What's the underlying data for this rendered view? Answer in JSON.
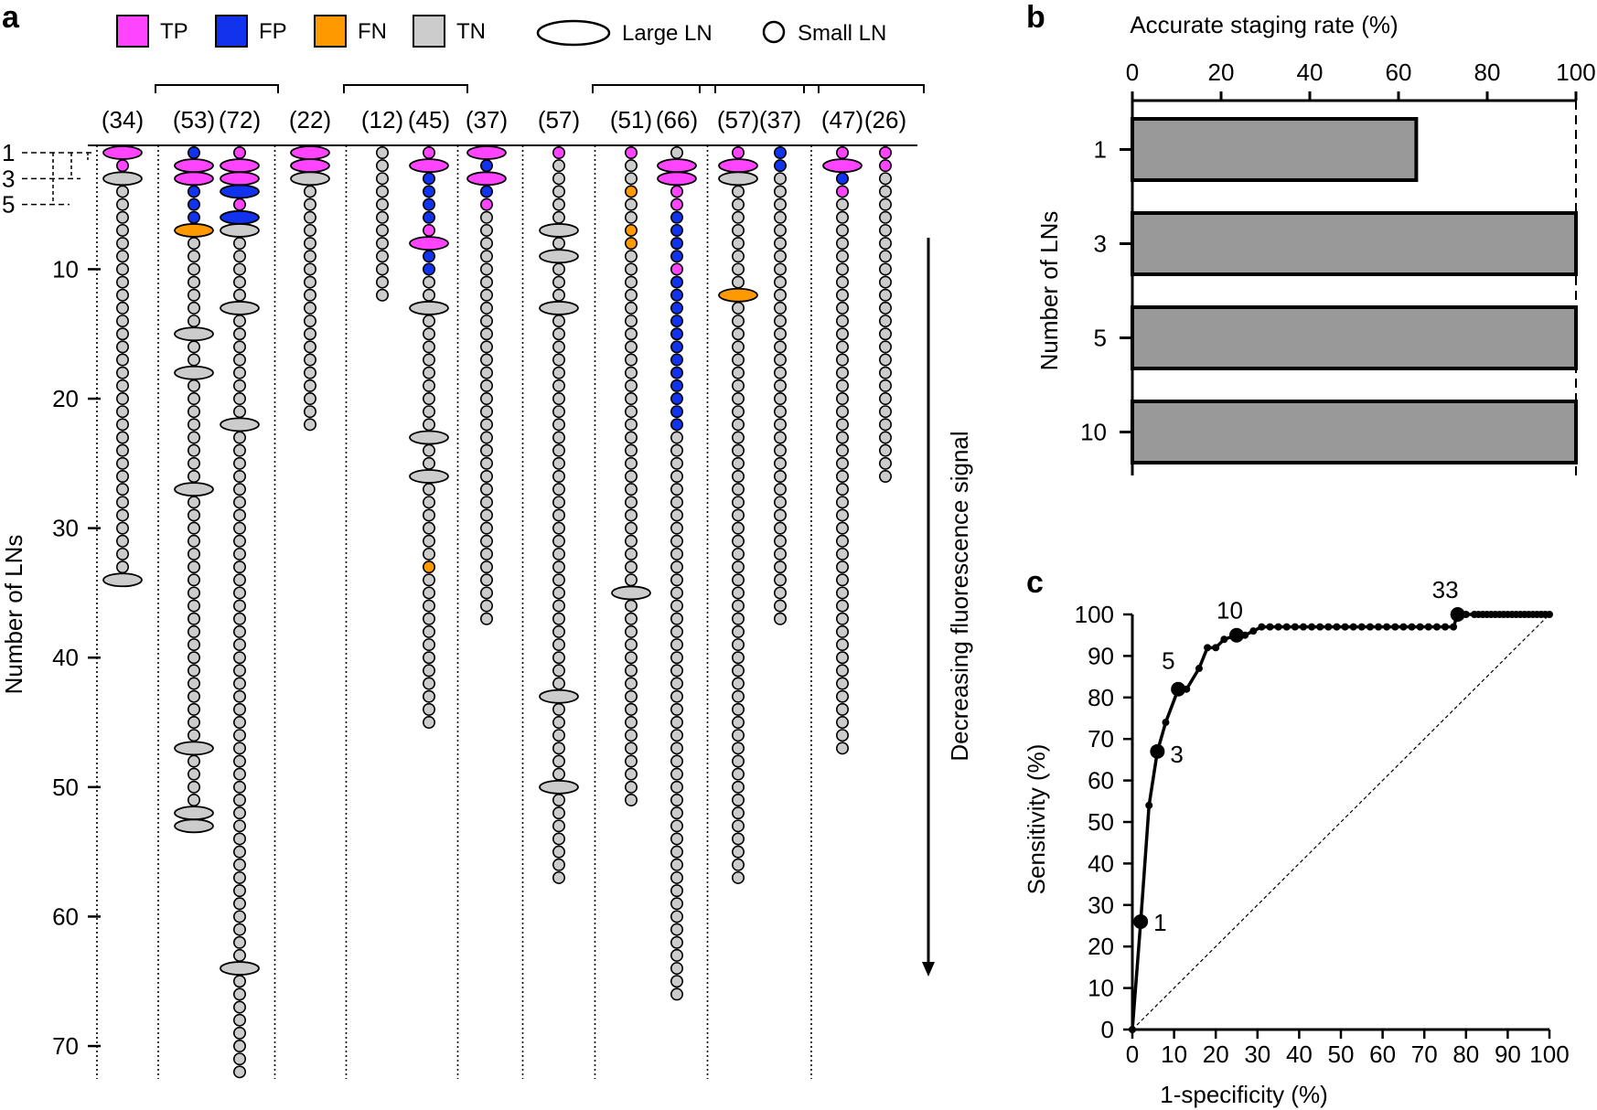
{
  "panel_labels": {
    "a": "a",
    "b": "b",
    "c": "c"
  },
  "chart_data": [
    {
      "type": "other",
      "panel": "a",
      "ylabel": "Number of LNs",
      "yticks": [
        10,
        20,
        30,
        40,
        50,
        60,
        70
      ],
      "left_markers": [
        "1",
        "3",
        "5"
      ],
      "arrow_label": "Decreasing fluorescence signal",
      "legend": [
        {
          "label": "TP",
          "color": "#ff44ff"
        },
        {
          "label": "FP",
          "color": "#1133ee"
        },
        {
          "label": "FN",
          "color": "#ff9900"
        },
        {
          "label": "TN",
          "color": "#cccccc"
        },
        {
          "label": "Large LN",
          "shape": "ellipse"
        },
        {
          "label": "Small LN",
          "shape": "circle"
        }
      ],
      "groups": [
        {
          "patients": [
            0
          ]
        },
        {
          "patients": [
            1,
            2
          ]
        },
        {
          "patients": [
            3
          ]
        },
        {
          "patients": [
            4,
            5
          ]
        },
        {
          "patients": [
            6
          ]
        },
        {
          "patients": [
            7
          ]
        },
        {
          "patients": [
            8,
            9
          ]
        },
        {
          "patients": [
            10,
            11
          ]
        },
        {
          "patients": [
            12,
            13
          ]
        }
      ],
      "patients": [
        {
          "label": "(34)",
          "count": 34,
          "large": [
            1,
            3,
            34
          ],
          "classes": {
            "TP": [
              1,
              2
            ],
            "FN": [],
            "FP": []
          }
        },
        {
          "label": "(53)",
          "count": 53,
          "large": [
            2,
            3,
            7,
            15,
            18,
            27,
            47,
            52,
            53
          ],
          "classes": {
            "TP": [
              2,
              3
            ],
            "FN": [
              7
            ],
            "FP": [
              1,
              4,
              5,
              6
            ]
          }
        },
        {
          "label": "(72)",
          "count": 72,
          "large": [
            2,
            3,
            4,
            6,
            7,
            13,
            22,
            64
          ],
          "classes": {
            "TP": [
              1,
              2,
              3,
              5
            ],
            "FN": [],
            "FP": [
              4,
              6
            ]
          }
        },
        {
          "label": "(22)",
          "count": 22,
          "large": [
            1,
            2,
            3
          ],
          "classes": {
            "TP": [
              1,
              2
            ],
            "FN": [],
            "FP": []
          }
        },
        {
          "label": "(12)",
          "count": 12,
          "large": [],
          "classes": {
            "TP": [],
            "FN": [],
            "FP": []
          }
        },
        {
          "label": "(45)",
          "count": 45,
          "large": [
            2,
            8,
            13,
            23,
            26
          ],
          "classes": {
            "TP": [
              1,
              2,
              7,
              8
            ],
            "FN": [
              33
            ],
            "FP": [
              3,
              4,
              5,
              6,
              9,
              10
            ]
          }
        },
        {
          "label": "(37)",
          "count": 37,
          "large": [
            1,
            3
          ],
          "classes": {
            "TP": [
              1,
              3,
              5
            ],
            "FN": [],
            "FP": [
              2,
              4
            ]
          }
        },
        {
          "label": "(57)",
          "count": 57,
          "large": [
            7,
            9,
            13,
            43,
            50
          ],
          "classes": {
            "TP": [
              1
            ],
            "FN": [],
            "FP": []
          }
        },
        {
          "label": "(51)",
          "count": 51,
          "large": [
            35
          ],
          "classes": {
            "TP": [
              1
            ],
            "FN": [
              4,
              7,
              8
            ],
            "FP": []
          }
        },
        {
          "label": "(66)",
          "count": 66,
          "large": [
            2,
            3
          ],
          "classes": {
            "TP": [
              2,
              3,
              4,
              5,
              10
            ],
            "FN": [],
            "FP": [
              6,
              7,
              8,
              9,
              11,
              12,
              13,
              14,
              15,
              16,
              17,
              18,
              19,
              20,
              21,
              22
            ]
          }
        },
        {
          "label": "(57)",
          "count": 57,
          "large": [
            2,
            3,
            12
          ],
          "classes": {
            "TP": [
              1,
              2
            ],
            "FN": [
              12
            ],
            "FP": []
          }
        },
        {
          "label": "(37)",
          "count": 37,
          "large": [],
          "classes": {
            "TP": [],
            "FN": [],
            "FP": [
              1,
              2
            ]
          }
        },
        {
          "label": "(47)",
          "count": 47,
          "large": [
            2
          ],
          "classes": {
            "TP": [
              1,
              2,
              4
            ],
            "FN": [],
            "FP": [
              3
            ]
          }
        },
        {
          "label": "(26)",
          "count": 26,
          "large": [],
          "classes": {
            "TP": [
              1,
              2
            ],
            "FN": [],
            "FP": []
          }
        }
      ]
    },
    {
      "type": "bar",
      "panel": "b",
      "orientation": "horizontal",
      "title": "Accurate staging rate (%)",
      "ylabel": "Number of LNs",
      "categories": [
        "1",
        "3",
        "5",
        "10"
      ],
      "values": [
        64,
        100,
        100,
        100
      ],
      "xlim": [
        0,
        100
      ],
      "xticks": [
        0,
        20,
        40,
        60,
        80,
        100
      ],
      "bar_color": "#999999"
    },
    {
      "type": "line",
      "panel": "c",
      "xlabel": "1-specificity (%)",
      "ylabel": "Sensitivity (%)",
      "xlim": [
        0,
        100
      ],
      "ylim": [
        0,
        100
      ],
      "xticks": [
        0,
        10,
        20,
        30,
        40,
        50,
        60,
        70,
        80,
        90,
        100
      ],
      "yticks": [
        0,
        10,
        20,
        30,
        40,
        50,
        60,
        70,
        80,
        90,
        100
      ],
      "x": [
        0,
        2,
        4,
        6,
        8,
        11,
        13,
        16,
        18,
        20,
        22,
        25,
        27,
        29,
        31,
        33,
        35,
        37,
        39,
        41,
        43,
        45,
        47,
        49,
        51,
        53,
        55,
        57,
        59,
        61,
        63,
        65,
        67,
        69,
        71,
        73,
        75,
        77,
        78,
        80,
        82,
        83,
        84,
        85,
        86,
        87,
        88,
        89,
        90,
        91,
        92,
        93,
        94,
        95,
        96,
        97,
        98,
        99,
        100
      ],
      "y": [
        0,
        26,
        54,
        67,
        74,
        82,
        82,
        87,
        92,
        92,
        94,
        95,
        95,
        96,
        97,
        97,
        97,
        97,
        97,
        97,
        97,
        97,
        97,
        97,
        97,
        97,
        97,
        97,
        97,
        97,
        97,
        97,
        97,
        97,
        97,
        97,
        97,
        97,
        100,
        100,
        100,
        100,
        100,
        100,
        100,
        100,
        100,
        100,
        100,
        100,
        100,
        100,
        100,
        100,
        100,
        100,
        100,
        100,
        100
      ],
      "highlighted": [
        {
          "label": "1",
          "x": 2,
          "y": 26
        },
        {
          "label": "3",
          "x": 6,
          "y": 67
        },
        {
          "label": "5",
          "x": 11,
          "y": 82
        },
        {
          "label": "10",
          "x": 25,
          "y": 95
        },
        {
          "label": "33",
          "x": 78,
          "y": 100
        }
      ],
      "reference_line": "diagonal"
    }
  ]
}
